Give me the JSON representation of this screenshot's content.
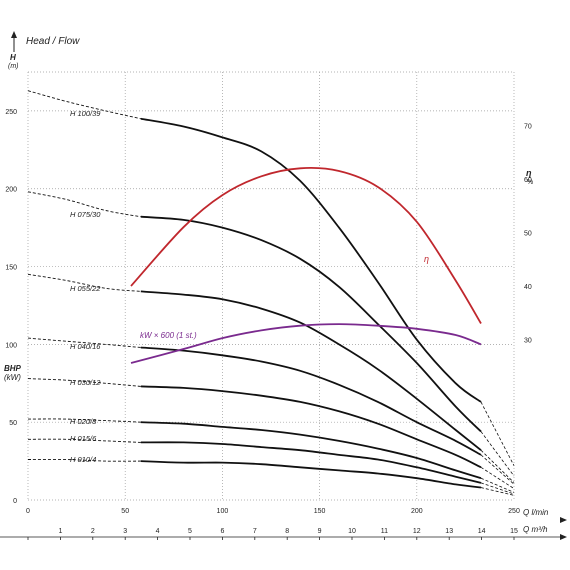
{
  "chart_data": {
    "type": "line",
    "title": "Head / Flow",
    "y_axis": {
      "symbol": "H",
      "unit": "(m)",
      "ticks": [
        0,
        50,
        100,
        150,
        200,
        250
      ],
      "range": [
        0,
        275
      ]
    },
    "x_axis": {
      "unit_label": "Q l/min",
      "ticks": [
        0,
        50,
        100,
        150,
        200,
        250
      ],
      "range": [
        0,
        250
      ]
    },
    "x2_axis": {
      "unit_label": "Q m³/h",
      "ticks": [
        1,
        2,
        3,
        4,
        5,
        6,
        7,
        8,
        9,
        10,
        11,
        12,
        13,
        14,
        15
      ],
      "range": [
        0,
        15
      ]
    },
    "eff_axis": {
      "symbol": "η",
      "unit": "%",
      "ticks": [
        30,
        40,
        50,
        60,
        70
      ],
      "range": [
        0,
        80
      ]
    },
    "bhp_axis": {
      "symbol": "BHP",
      "unit": "(kW)"
    },
    "grid": true,
    "series": [
      {
        "name": "H 100/39",
        "color": "#111111",
        "dashed": [
          [
            0,
            263
          ],
          [
            20,
            256
          ],
          [
            40,
            250
          ],
          [
            58,
            245
          ]
        ],
        "solid": [
          [
            58,
            245
          ],
          [
            80,
            240
          ],
          [
            100,
            233
          ],
          [
            120,
            224
          ],
          [
            140,
            205
          ],
          [
            160,
            175
          ],
          [
            180,
            140
          ],
          [
            200,
            103
          ],
          [
            220,
            75
          ],
          [
            233,
            63
          ]
        ]
      },
      {
        "name": "H 075/30",
        "color": "#111111",
        "dashed": [
          [
            0,
            198
          ],
          [
            20,
            193
          ],
          [
            40,
            186
          ],
          [
            58,
            182
          ]
        ],
        "solid": [
          [
            58,
            182
          ],
          [
            80,
            180
          ],
          [
            100,
            175
          ],
          [
            120,
            167
          ],
          [
            140,
            155
          ],
          [
            160,
            137
          ],
          [
            180,
            113
          ],
          [
            200,
            88
          ],
          [
            220,
            60
          ],
          [
            233,
            44
          ]
        ]
      },
      {
        "name": "H 055/22",
        "color": "#111111",
        "dashed": [
          [
            0,
            145
          ],
          [
            20,
            141
          ],
          [
            40,
            136
          ],
          [
            58,
            134
          ]
        ],
        "solid": [
          [
            58,
            134
          ],
          [
            80,
            132
          ],
          [
            100,
            129
          ],
          [
            120,
            123
          ],
          [
            140,
            114
          ],
          [
            160,
            100
          ],
          [
            180,
            84
          ],
          [
            200,
            65
          ],
          [
            220,
            45
          ],
          [
            233,
            32
          ]
        ]
      },
      {
        "name": "H 040/16",
        "color": "#111111",
        "dashed": [
          [
            0,
            104
          ],
          [
            20,
            102
          ],
          [
            40,
            100
          ],
          [
            58,
            98
          ]
        ],
        "solid": [
          [
            58,
            98
          ],
          [
            80,
            96
          ],
          [
            100,
            93
          ],
          [
            120,
            89
          ],
          [
            140,
            83
          ],
          [
            160,
            74
          ],
          [
            180,
            63
          ],
          [
            200,
            50
          ],
          [
            220,
            38
          ],
          [
            233,
            29
          ]
        ]
      },
      {
        "name": "H 030/12",
        "color": "#111111",
        "dashed": [
          [
            0,
            78
          ],
          [
            20,
            77
          ],
          [
            40,
            75
          ],
          [
            58,
            73
          ]
        ],
        "solid": [
          [
            58,
            73
          ],
          [
            80,
            72
          ],
          [
            100,
            70
          ],
          [
            120,
            67
          ],
          [
            140,
            63
          ],
          [
            160,
            57
          ],
          [
            180,
            49
          ],
          [
            200,
            39
          ],
          [
            220,
            29
          ],
          [
            233,
            21
          ]
        ]
      },
      {
        "name": "H 020/8",
        "color": "#111111",
        "dashed": [
          [
            0,
            52
          ],
          [
            20,
            52
          ],
          [
            40,
            51
          ],
          [
            58,
            50
          ]
        ],
        "solid": [
          [
            58,
            50
          ],
          [
            80,
            49
          ],
          [
            100,
            47
          ],
          [
            120,
            45
          ],
          [
            140,
            42
          ],
          [
            160,
            38
          ],
          [
            180,
            33
          ],
          [
            200,
            27
          ],
          [
            220,
            19
          ],
          [
            233,
            14
          ]
        ]
      },
      {
        "name": "H 015/6",
        "color": "#111111",
        "dashed": [
          [
            0,
            39
          ],
          [
            20,
            39
          ],
          [
            40,
            38
          ],
          [
            58,
            37
          ]
        ],
        "solid": [
          [
            58,
            37
          ],
          [
            80,
            37
          ],
          [
            100,
            36
          ],
          [
            120,
            34
          ],
          [
            140,
            32
          ],
          [
            160,
            29
          ],
          [
            180,
            26
          ],
          [
            200,
            21
          ],
          [
            220,
            15
          ],
          [
            233,
            11
          ]
        ]
      },
      {
        "name": "H 010/4",
        "color": "#111111",
        "dashed": [
          [
            0,
            26
          ],
          [
            20,
            26
          ],
          [
            40,
            25
          ],
          [
            58,
            25
          ]
        ],
        "solid": [
          [
            58,
            25
          ],
          [
            80,
            24
          ],
          [
            100,
            24
          ],
          [
            120,
            23
          ],
          [
            140,
            21
          ],
          [
            160,
            19
          ],
          [
            180,
            17
          ],
          [
            200,
            14
          ],
          [
            220,
            10
          ],
          [
            233,
            8
          ]
        ]
      },
      {
        "name": "η",
        "color": "#c0272d",
        "axis": "eff",
        "solid": [
          [
            53,
            40
          ],
          [
            80,
            51
          ],
          [
            100,
            57
          ],
          [
            120,
            60.5
          ],
          [
            140,
            62
          ],
          [
            160,
            61.5
          ],
          [
            180,
            58.5
          ],
          [
            200,
            52
          ],
          [
            220,
            41
          ],
          [
            233,
            33
          ]
        ]
      },
      {
        "name": "kW × 600 (1 st.)",
        "color": "#7a2a8e",
        "solid": [
          [
            53,
            88
          ],
          [
            80,
            97
          ],
          [
            100,
            104
          ],
          [
            120,
            109
          ],
          [
            140,
            112
          ],
          [
            160,
            113
          ],
          [
            180,
            112
          ],
          [
            200,
            110
          ],
          [
            220,
            106
          ],
          [
            233,
            100
          ]
        ]
      }
    ]
  }
}
